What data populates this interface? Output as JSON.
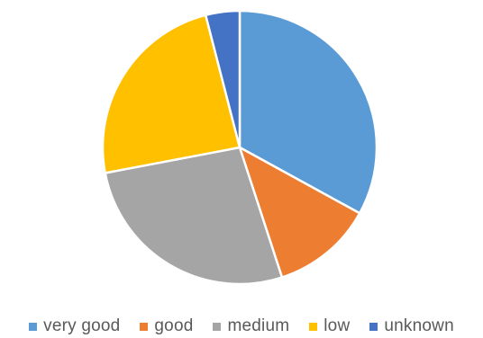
{
  "chart_data": {
    "type": "pie",
    "categories": [
      "very good",
      "good",
      "medium",
      "low",
      "unknown"
    ],
    "values": [
      33,
      12,
      27,
      24,
      4
    ],
    "colors": [
      "#5B9BD5",
      "#ED7D31",
      "#A5A5A5",
      "#FFC000",
      "#4472C4"
    ],
    "title": "",
    "legend_position": "bottom",
    "start_angle_deg": 0,
    "direction": "clockwise"
  }
}
